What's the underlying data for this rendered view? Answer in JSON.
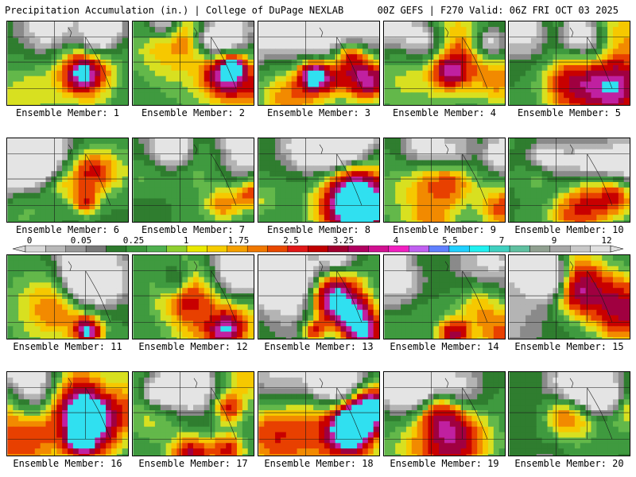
{
  "header": {
    "left_title": "Precipitation Accumulation (in.) | College of DuPage NEXLAB",
    "right_title": "00Z GEFS | F270 Valid: 06Z FRI OCT 03 2025"
  },
  "members": [
    {
      "label": "Ensemble Member: 1",
      "seed": 1,
      "hot": 1
    },
    {
      "label": "Ensemble Member: 2",
      "seed": 2,
      "hot": 2
    },
    {
      "label": "Ensemble Member: 3",
      "seed": 3,
      "hot": 3
    },
    {
      "label": "Ensemble Member: 4",
      "seed": 4,
      "hot": 1
    },
    {
      "label": "Ensemble Member: 5",
      "seed": 5,
      "hot": 1
    },
    {
      "label": "Ensemble Member: 6",
      "seed": 6,
      "hot": 1
    },
    {
      "label": "Ensemble Member: 7",
      "seed": 7,
      "hot": 1
    },
    {
      "label": "Ensemble Member: 8",
      "seed": 8,
      "hot": 2
    },
    {
      "label": "Ensemble Member: 9",
      "seed": 9,
      "hot": 1
    },
    {
      "label": "Ensemble Member: 10",
      "seed": 10,
      "hot": 1
    },
    {
      "label": "Ensemble Member: 11",
      "seed": 11,
      "hot": 1
    },
    {
      "label": "Ensemble Member: 12",
      "seed": 12,
      "hot": 1
    },
    {
      "label": "Ensemble Member: 13",
      "seed": 13,
      "hot": 3
    },
    {
      "label": "Ensemble Member: 14",
      "seed": 14,
      "hot": 2
    },
    {
      "label": "Ensemble Member: 15",
      "seed": 15,
      "hot": 2
    },
    {
      "label": "Ensemble Member: 16",
      "seed": 16,
      "hot": 3
    },
    {
      "label": "Ensemble Member: 17",
      "seed": 17,
      "hot": 2
    },
    {
      "label": "Ensemble Member: 18",
      "seed": 18,
      "hot": 3
    },
    {
      "label": "Ensemble Member: 19",
      "seed": 19,
      "hot": 1
    },
    {
      "label": "Ensemble Member: 20",
      "seed": 20,
      "hot": 1
    }
  ],
  "colorbar": {
    "tick_labels": [
      "0",
      "0.05",
      "0.25",
      "1",
      "1.75",
      "2.5",
      "3.25",
      "4",
      "5.5",
      "7",
      "9",
      "12"
    ],
    "colors": [
      "#d8d8d8",
      "#b8b8b8",
      "#989898",
      "#787878",
      "#2d7a2d",
      "#3c963c",
      "#4fb04f",
      "#8fcf2f",
      "#e8e800",
      "#f5cc00",
      "#f5a000",
      "#f07800",
      "#e84800",
      "#e01818",
      "#c00000",
      "#a00030",
      "#b00060",
      "#d01090",
      "#f020c0",
      "#c060f0",
      "#6080ff",
      "#20d0ff",
      "#20f0f0",
      "#40d0c0",
      "#60c0a0",
      "#90a090",
      "#a8a8a8",
      "#c8c8c8",
      "#e0e0e0"
    ]
  }
}
